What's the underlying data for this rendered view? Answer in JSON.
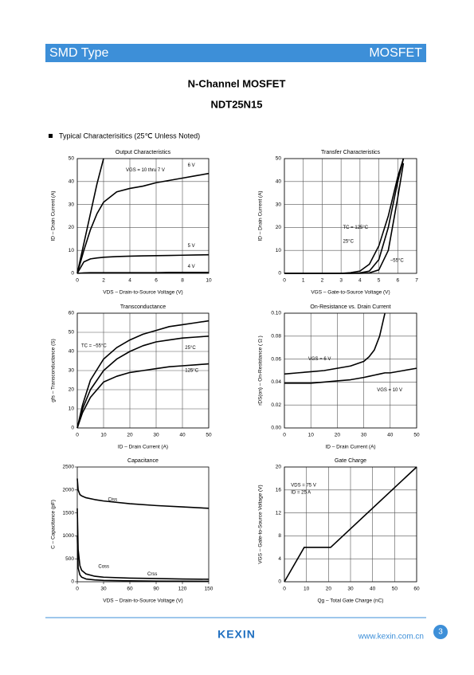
{
  "header": {
    "left": "SMD Type",
    "right": "MOSFET"
  },
  "title": "N-Channel MOSFET",
  "part_number": "NDT25N15",
  "section": "Typical  Characterisitics (25℃ Unless Noted)",
  "chart_data": [
    {
      "type": "line",
      "title": "Output  Characteristics",
      "x_label": "VDS  –  Drain-to-Source Voltage (V)",
      "y_label": "ID  –  Drain Current (A)",
      "x": [
        0,
        0.5,
        1,
        1.5,
        2,
        3,
        4,
        5,
        6,
        7,
        8,
        9,
        10
      ],
      "xlim": [
        0,
        10
      ],
      "xticks": [
        0,
        2,
        4,
        6,
        8,
        10
      ],
      "ylim": [
        0,
        50
      ],
      "yticks": [
        0,
        10,
        20,
        30,
        40,
        50
      ],
      "grid": true,
      "series": [
        {
          "name": "VGS = 10 thru 7 V",
          "color": "#000000",
          "values": [
            0,
            13,
            26,
            39,
            50,
            null,
            null,
            null,
            null,
            null,
            null,
            null,
            null
          ]
        },
        {
          "name": "6 V",
          "color": "#000000",
          "values": [
            0,
            10,
            19,
            26,
            31,
            35.5,
            37,
            38,
            39.5,
            40.5,
            41.5,
            42.5,
            43.5
          ]
        },
        {
          "name": "5 V",
          "color": "#000000",
          "values": [
            0,
            5,
            6.3,
            6.7,
            7,
            7.3,
            7.5,
            7.6,
            7.7,
            7.8,
            7.9,
            8,
            8.1
          ]
        },
        {
          "name": "4 V",
          "color": "#000000",
          "values": [
            0,
            0.2,
            0.3,
            0.3,
            0.3,
            0.3,
            0.3,
            0.3,
            0.3,
            0.4,
            0.4,
            0.4,
            0.4
          ]
        }
      ]
    },
    {
      "type": "line",
      "title": "Transfer Characteristics",
      "x_label": "VGS  –  Gate-to-Source Voltage (V)",
      "y_label": "ID  –  Drain Current (A)",
      "x": [
        0,
        1,
        2,
        3,
        3.5,
        4,
        4.5,
        5,
        5.5,
        6,
        6.3
      ],
      "xlim": [
        0,
        7
      ],
      "xticks": [
        0,
        1,
        2,
        3,
        4,
        5,
        6,
        7
      ],
      "ylim": [
        0,
        50
      ],
      "yticks": [
        0,
        10,
        20,
        30,
        40,
        50
      ],
      "grid": true,
      "series": [
        {
          "name": "TC = 125°C",
          "color": "#000000",
          "values": [
            0,
            0,
            0,
            0,
            0.3,
            1,
            4,
            12,
            25,
            42,
            50
          ]
        },
        {
          "name": "25°C",
          "color": "#000000",
          "values": [
            0,
            0,
            0,
            0,
            0,
            0.2,
            1,
            6,
            20,
            40,
            50
          ]
        },
        {
          "name": "−55°C",
          "color": "#000000",
          "values": [
            0,
            0,
            0,
            0,
            0,
            0,
            0.2,
            1.5,
            10,
            33,
            48
          ]
        }
      ]
    },
    {
      "type": "line",
      "title": "Transconductance",
      "x_label": "ID  –  Drain Current (A)",
      "y_label": "gfs  –  Transconductance (S)",
      "x": [
        0,
        2,
        5,
        10,
        15,
        20,
        25,
        30,
        35,
        40,
        45,
        50
      ],
      "xlim": [
        0,
        50
      ],
      "xticks": [
        0,
        10,
        20,
        30,
        40,
        50
      ],
      "ylim": [
        0,
        60
      ],
      "yticks": [
        0,
        10,
        20,
        30,
        40,
        50,
        60
      ],
      "grid": true,
      "series": [
        {
          "name": "TC = −55°C",
          "color": "#000000",
          "values": [
            0,
            12,
            25,
            36,
            42,
            46,
            49,
            51,
            53,
            54,
            55,
            56
          ]
        },
        {
          "name": "25°C",
          "color": "#000000",
          "values": [
            0,
            10,
            20,
            30,
            36,
            40,
            43,
            45,
            46,
            47,
            47.5,
            48
          ]
        },
        {
          "name": "125°C",
          "color": "#000000",
          "values": [
            0,
            8,
            16,
            24,
            27,
            29,
            30,
            31,
            32,
            32.5,
            33,
            33.5
          ]
        }
      ]
    },
    {
      "type": "line",
      "title": "On-Resistance vs. Drain Current",
      "x_label": "ID  –  Drain Current (A)",
      "y_label": "rDS(on)  –  On-Resistance ( Ω )",
      "x": [
        0,
        5,
        10,
        15,
        20,
        25,
        30,
        32,
        34,
        36,
        38,
        40,
        45,
        50
      ],
      "xlim": [
        0,
        50
      ],
      "xticks": [
        0,
        10,
        20,
        30,
        40,
        50
      ],
      "ylim": [
        0,
        0.1
      ],
      "yticks": [
        {
          "value": 0,
          "label": "0.00"
        },
        0.02,
        0.04,
        0.06,
        0.08,
        {
          "value": 0.1,
          "label": "0.10"
        }
      ],
      "grid": true,
      "series": [
        {
          "name": "VGS = 6 V",
          "color": "#000000",
          "values": [
            0.047,
            0.048,
            0.049,
            0.05,
            0.052,
            0.054,
            0.058,
            0.062,
            0.068,
            0.08,
            0.1,
            null,
            null,
            null
          ]
        },
        {
          "name": "VGS = 10 V",
          "color": "#000000",
          "values": [
            0.039,
            0.039,
            0.039,
            0.04,
            0.041,
            0.042,
            0.044,
            0.045,
            0.046,
            0.047,
            0.048,
            0.048,
            0.05,
            0.052
          ]
        }
      ]
    },
    {
      "type": "line",
      "title": "Capacitance",
      "x_label": "VDS  –  Drain-to-Source Voltage (V)",
      "y_label": "C  –  Capacitance (pF)",
      "x": [
        0,
        1,
        3,
        5,
        10,
        20,
        30,
        60,
        90,
        120,
        150
      ],
      "xlim": [
        0,
        150
      ],
      "xticks": [
        0,
        30,
        60,
        90,
        120,
        150
      ],
      "ylim": [
        0,
        2500
      ],
      "yticks": [
        0,
        500,
        1000,
        1500,
        2000,
        2500
      ],
      "grid": false,
      "series": [
        {
          "name": "Ciss",
          "color": "#000000",
          "values": [
            2250,
            2000,
            1900,
            1870,
            1830,
            1790,
            1760,
            1700,
            1660,
            1630,
            1600
          ]
        },
        {
          "name": "Coss",
          "color": "#000000",
          "values": [
            1600,
            700,
            350,
            250,
            170,
            120,
            100,
            80,
            70,
            60,
            55
          ]
        },
        {
          "name": "Crss",
          "color": "#000000",
          "values": [
            1000,
            300,
            150,
            100,
            60,
            40,
            30,
            20,
            15,
            12,
            10
          ]
        }
      ]
    },
    {
      "type": "line",
      "title": "Gate Charge",
      "x_label": "Qg  –  Total Gate Charge (nC)",
      "y_label": "VGS  –  Gate-to-Source Voltage (V)",
      "x": [
        0,
        9,
        21,
        60
      ],
      "xlim": [
        0,
        60
      ],
      "xticks": [
        0,
        10,
        20,
        30,
        40,
        50,
        60
      ],
      "ylim": [
        0,
        20
      ],
      "yticks": [
        0,
        4,
        8,
        12,
        16,
        20
      ],
      "grid": true,
      "annotations": [
        "VDS = 75 V",
        "ID = 25 A"
      ],
      "series": [
        {
          "name": "VGS",
          "color": "#000000",
          "values": [
            0,
            6,
            6,
            20
          ]
        }
      ]
    }
  ],
  "footer": {
    "logo": "KEXIN",
    "url": "www.kexin.com.cn",
    "page": "3"
  }
}
